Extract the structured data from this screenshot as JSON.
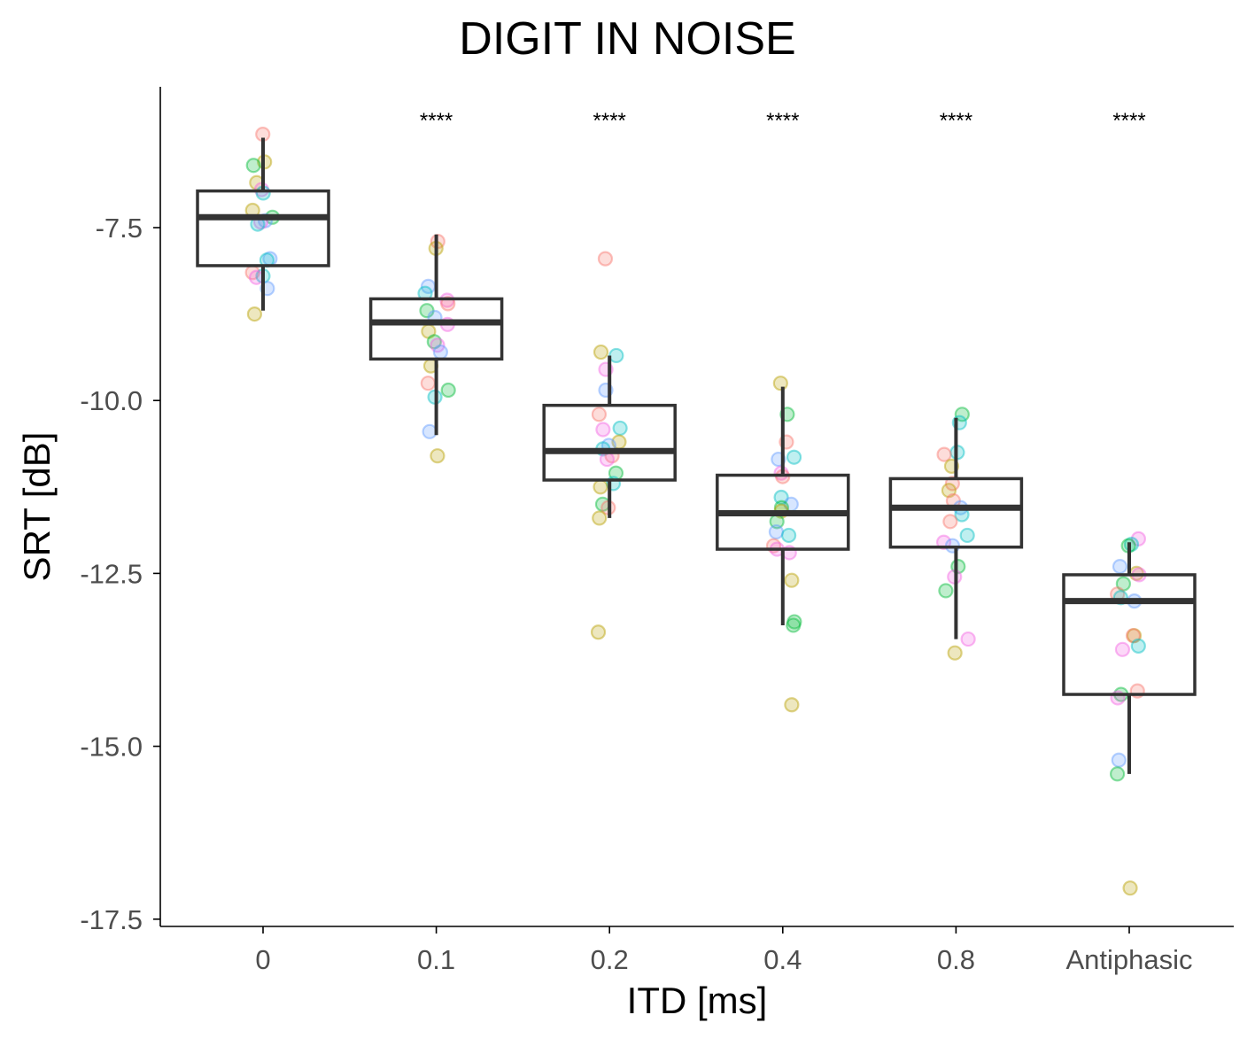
{
  "chart_data": {
    "type": "box",
    "title": "DIGIT IN NOISE",
    "xlabel": "ITD [ms]",
    "ylabel": "SRT [dB]",
    "categories": [
      "0",
      "0.1",
      "0.2",
      "0.4",
      "0.8",
      "Antiphasic"
    ],
    "y_ticks": [
      -7.5,
      -10.0,
      -12.5,
      -15.0,
      -17.5
    ],
    "y_tick_labels": [
      "-7.5",
      "-10.0",
      "-12.5",
      "-15.0",
      "-17.5"
    ],
    "ylim": [
      -17.6,
      -5.4
    ],
    "grid": false,
    "significance": [
      "",
      "****",
      "****",
      "****",
      "****",
      "****"
    ],
    "boxes": [
      {
        "category": "0",
        "whisker_low": -8.7,
        "q1": -8.05,
        "median": -7.35,
        "q3": -6.97,
        "whisker_high": -6.2
      },
      {
        "category": "0.1",
        "whisker_low": -10.5,
        "q1": -9.4,
        "median": -8.87,
        "q3": -8.53,
        "whisker_high": -7.6
      },
      {
        "category": "0.2",
        "whisker_low": -11.7,
        "q1": -11.15,
        "median": -10.73,
        "q3": -10.07,
        "whisker_high": -9.35
      },
      {
        "category": "0.4",
        "whisker_low": -13.25,
        "q1": -12.15,
        "median": -11.63,
        "q3": -11.08,
        "whisker_high": -9.8
      },
      {
        "category": "0.8",
        "whisker_low": -13.45,
        "q1": -12.12,
        "median": -11.55,
        "q3": -11.13,
        "whisker_high": -10.25
      },
      {
        "category": "Antiphasic",
        "whisker_low": -15.4,
        "q1": -14.25,
        "median": -12.9,
        "q3": -12.52,
        "whisker_high": -12.05
      }
    ],
    "points": [
      [
        {
          "y": -6.15,
          "c": "#F8766D"
        },
        {
          "y": -6.55,
          "c": "#B79F00"
        },
        {
          "y": -6.6,
          "c": "#00BA38"
        },
        {
          "y": -6.85,
          "c": "#B79F00"
        },
        {
          "y": -6.95,
          "c": "#F564E3"
        },
        {
          "y": -7.0,
          "c": "#00BFC4"
        },
        {
          "y": -7.25,
          "c": "#B79F00"
        },
        {
          "y": -7.35,
          "c": "#00BA38"
        },
        {
          "y": -7.4,
          "c": "#619CFF"
        },
        {
          "y": -7.42,
          "c": "#F564E3"
        },
        {
          "y": -7.45,
          "c": "#00BFC4"
        },
        {
          "y": -7.95,
          "c": "#619CFF"
        },
        {
          "y": -7.97,
          "c": "#00BFC4"
        },
        {
          "y": -8.15,
          "c": "#F8766D"
        },
        {
          "y": -8.2,
          "c": "#00BFC4"
        },
        {
          "y": -8.22,
          "c": "#F564E3"
        },
        {
          "y": -8.38,
          "c": "#619CFF"
        },
        {
          "y": -8.75,
          "c": "#B79F00"
        }
      ],
      [
        {
          "y": -7.7,
          "c": "#F8766D"
        },
        {
          "y": -7.8,
          "c": "#B79F00"
        },
        {
          "y": -8.35,
          "c": "#619CFF"
        },
        {
          "y": -8.45,
          "c": "#00BFC4"
        },
        {
          "y": -8.55,
          "c": "#F564E3"
        },
        {
          "y": -8.6,
          "c": "#F8766D"
        },
        {
          "y": -8.7,
          "c": "#00BA38"
        },
        {
          "y": -8.8,
          "c": "#619CFF"
        },
        {
          "y": -8.9,
          "c": "#F564E3"
        },
        {
          "y": -9.0,
          "c": "#B79F00"
        },
        {
          "y": -9.15,
          "c": "#00BA38"
        },
        {
          "y": -9.2,
          "c": "#F564E3"
        },
        {
          "y": -9.3,
          "c": "#619CFF"
        },
        {
          "y": -9.5,
          "c": "#B79F00"
        },
        {
          "y": -9.75,
          "c": "#F8766D"
        },
        {
          "y": -9.85,
          "c": "#00BA38"
        },
        {
          "y": -9.95,
          "c": "#00BFC4"
        },
        {
          "y": -10.45,
          "c": "#619CFF"
        },
        {
          "y": -10.8,
          "c": "#B79F00"
        }
      ],
      [
        {
          "y": -7.95,
          "c": "#F8766D"
        },
        {
          "y": -9.3,
          "c": "#B79F00"
        },
        {
          "y": -9.35,
          "c": "#00BFC4"
        },
        {
          "y": -9.55,
          "c": "#F564E3"
        },
        {
          "y": -9.85,
          "c": "#619CFF"
        },
        {
          "y": -10.2,
          "c": "#F8766D"
        },
        {
          "y": -10.4,
          "c": "#00BFC4"
        },
        {
          "y": -10.42,
          "c": "#F564E3"
        },
        {
          "y": -10.6,
          "c": "#B79F00"
        },
        {
          "y": -10.65,
          "c": "#619CFF"
        },
        {
          "y": -10.7,
          "c": "#00BFC4"
        },
        {
          "y": -10.8,
          "c": "#F8766D"
        },
        {
          "y": -10.85,
          "c": "#F564E3"
        },
        {
          "y": -11.05,
          "c": "#00BA38"
        },
        {
          "y": -11.2,
          "c": "#00BFC4"
        },
        {
          "y": -11.25,
          "c": "#B79F00"
        },
        {
          "y": -11.5,
          "c": "#00BA38"
        },
        {
          "y": -11.55,
          "c": "#F8766D"
        },
        {
          "y": -11.7,
          "c": "#B79F00"
        },
        {
          "y": -13.35,
          "c": "#B79F00"
        }
      ],
      [
        {
          "y": -9.75,
          "c": "#B79F00"
        },
        {
          "y": -10.2,
          "c": "#00BA38"
        },
        {
          "y": -10.6,
          "c": "#F8766D"
        },
        {
          "y": -10.82,
          "c": "#00BFC4"
        },
        {
          "y": -10.85,
          "c": "#619CFF"
        },
        {
          "y": -11.05,
          "c": "#F564E3"
        },
        {
          "y": -11.1,
          "c": "#F8766D"
        },
        {
          "y": -11.4,
          "c": "#00BFC4"
        },
        {
          "y": -11.5,
          "c": "#619CFF"
        },
        {
          "y": -11.55,
          "c": "#00BA38"
        },
        {
          "y": -11.6,
          "c": "#B79F00"
        },
        {
          "y": -11.75,
          "c": "#00BA38"
        },
        {
          "y": -11.9,
          "c": "#619CFF"
        },
        {
          "y": -11.95,
          "c": "#00BFC4"
        },
        {
          "y": -12.1,
          "c": "#F8766D"
        },
        {
          "y": -12.15,
          "c": "#F564E3"
        },
        {
          "y": -12.2,
          "c": "#F564E3"
        },
        {
          "y": -12.6,
          "c": "#B79F00"
        },
        {
          "y": -13.2,
          "c": "#00BA38"
        },
        {
          "y": -13.25,
          "c": "#00BA38"
        },
        {
          "y": -14.4,
          "c": "#B79F00"
        }
      ],
      [
        {
          "y": -10.2,
          "c": "#00BA38"
        },
        {
          "y": -10.32,
          "c": "#00BFC4"
        },
        {
          "y": -10.75,
          "c": "#00BFC4"
        },
        {
          "y": -10.78,
          "c": "#F8766D"
        },
        {
          "y": -10.95,
          "c": "#B79F00"
        },
        {
          "y": -11.2,
          "c": "#F8766D"
        },
        {
          "y": -11.3,
          "c": "#B79F00"
        },
        {
          "y": -11.45,
          "c": "#F8766D"
        },
        {
          "y": -11.55,
          "c": "#619CFF"
        },
        {
          "y": -11.65,
          "c": "#00BFC4"
        },
        {
          "y": -11.75,
          "c": "#F8766D"
        },
        {
          "y": -11.95,
          "c": "#00BFC4"
        },
        {
          "y": -12.05,
          "c": "#F564E3"
        },
        {
          "y": -12.1,
          "c": "#619CFF"
        },
        {
          "y": -12.4,
          "c": "#00BA38"
        },
        {
          "y": -12.55,
          "c": "#F564E3"
        },
        {
          "y": -12.75,
          "c": "#00BA38"
        },
        {
          "y": -13.45,
          "c": "#F564E3"
        },
        {
          "y": -13.65,
          "c": "#B79F00"
        }
      ],
      [
        {
          "y": -12.0,
          "c": "#F564E3"
        },
        {
          "y": -12.08,
          "c": "#00BFC4"
        },
        {
          "y": -12.1,
          "c": "#00BA38"
        },
        {
          "y": -12.4,
          "c": "#619CFF"
        },
        {
          "y": -12.5,
          "c": "#B79F00"
        },
        {
          "y": -12.52,
          "c": "#F564E3"
        },
        {
          "y": -12.65,
          "c": "#00BA38"
        },
        {
          "y": -12.8,
          "c": "#F8766D"
        },
        {
          "y": -12.85,
          "c": "#00BFC4"
        },
        {
          "y": -12.9,
          "c": "#619CFF"
        },
        {
          "y": -13.4,
          "c": "#B79F00"
        },
        {
          "y": -13.4,
          "c": "#F8766D"
        },
        {
          "y": -13.55,
          "c": "#00BFC4"
        },
        {
          "y": -13.6,
          "c": "#F564E3"
        },
        {
          "y": -14.2,
          "c": "#F8766D"
        },
        {
          "y": -14.25,
          "c": "#00BA38"
        },
        {
          "y": -14.3,
          "c": "#F564E3"
        },
        {
          "y": -15.2,
          "c": "#619CFF"
        },
        {
          "y": -15.4,
          "c": "#00BA38"
        },
        {
          "y": -17.05,
          "c": "#B79F00"
        }
      ]
    ],
    "colors": {
      "box": "#333333",
      "axis": "#000000",
      "tick_label": "#4d4d4d",
      "point_opacity": 0.25
    }
  }
}
